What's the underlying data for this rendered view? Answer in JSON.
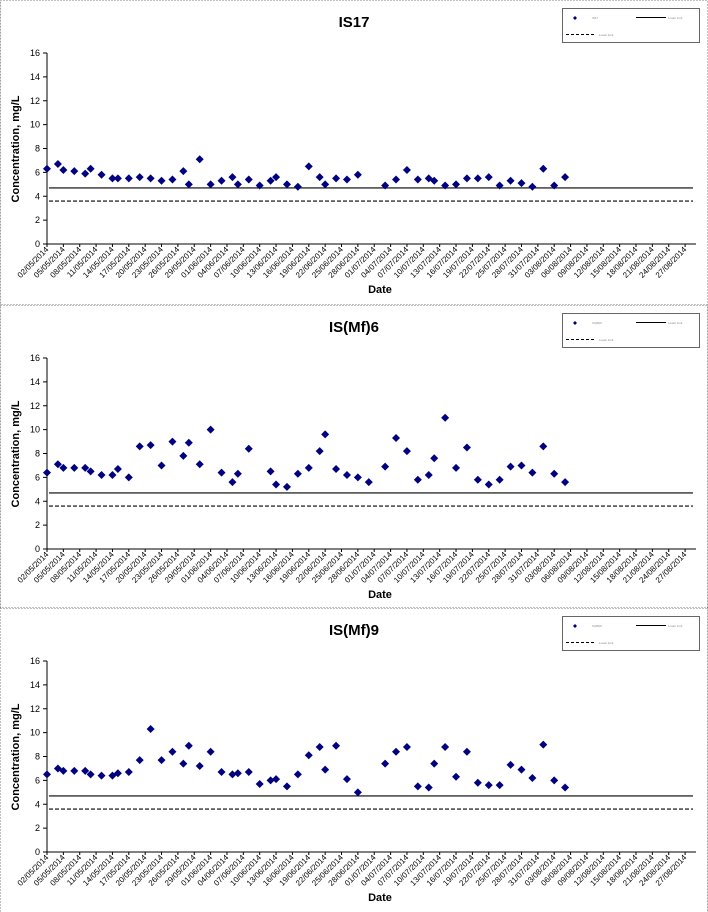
{
  "chart_data": [
    {
      "type": "scatter",
      "title": "IS17",
      "xlabel": "Date",
      "ylabel": "Concentration, mg/L",
      "ylim": [
        0,
        16
      ],
      "yticks": [
        0,
        2,
        4,
        6,
        8,
        10,
        12,
        14,
        16
      ],
      "xlim": [
        "2014-05-02",
        "2014-08-29"
      ],
      "xticks": [
        "02/05/2014",
        "05/05/2014",
        "08/05/2014",
        "11/05/2014",
        "14/05/2014",
        "17/05/2014",
        "20/05/2014",
        "23/05/2014",
        "26/05/2014",
        "29/05/2014",
        "01/06/2014",
        "04/06/2014",
        "07/06/2014",
        "10/06/2014",
        "13/06/2014",
        "16/06/2014",
        "19/06/2014",
        "22/06/2014",
        "25/06/2014",
        "28/06/2014",
        "01/07/2014",
        "04/07/2014",
        "07/07/2014",
        "10/07/2014",
        "13/07/2014",
        "16/07/2014",
        "19/07/2014",
        "22/07/2014",
        "25/07/2014",
        "28/07/2014",
        "31/07/2014",
        "03/08/2014",
        "06/08/2014",
        "09/08/2014",
        "12/08/2014",
        "15/08/2014",
        "18/08/2014",
        "21/08/2014",
        "24/08/2014",
        "27/08/2014"
      ],
      "grid": false,
      "legend": "top-right",
      "legend_items": [
        {
          "kind": "marker",
          "label": "IS17"
        },
        {
          "kind": "solid",
          "label": "Lower limit"
        },
        {
          "kind": "dashed",
          "label": "Lower limit"
        }
      ],
      "reference_lines": [
        {
          "style": "solid",
          "y": 4.7
        },
        {
          "style": "dashed",
          "y": 3.6
        }
      ],
      "series": [
        {
          "points": [
            [
              "2014-05-02",
              6.3
            ],
            [
              "2014-05-04",
              6.7
            ],
            [
              "2014-05-05",
              6.2
            ],
            [
              "2014-05-07",
              6.1
            ],
            [
              "2014-05-09",
              5.9
            ],
            [
              "2014-05-10",
              6.3
            ],
            [
              "2014-05-12",
              5.8
            ],
            [
              "2014-05-14",
              5.5
            ],
            [
              "2014-05-15",
              5.5
            ],
            [
              "2014-05-17",
              5.5
            ],
            [
              "2014-05-19",
              5.6
            ],
            [
              "2014-05-21",
              5.5
            ],
            [
              "2014-05-23",
              5.3
            ],
            [
              "2014-05-25",
              5.4
            ],
            [
              "2014-05-27",
              6.1
            ],
            [
              "2014-05-28",
              5.0
            ],
            [
              "2014-05-30",
              7.1
            ],
            [
              "2014-06-01",
              5.0
            ],
            [
              "2014-06-03",
              5.3
            ],
            [
              "2014-06-05",
              5.6
            ],
            [
              "2014-06-06",
              5.0
            ],
            [
              "2014-06-08",
              5.4
            ],
            [
              "2014-06-10",
              4.9
            ],
            [
              "2014-06-12",
              5.3
            ],
            [
              "2014-06-13",
              5.6
            ],
            [
              "2014-06-15",
              5.0
            ],
            [
              "2014-06-17",
              4.8
            ],
            [
              "2014-06-19",
              6.5
            ],
            [
              "2014-06-21",
              5.6
            ],
            [
              "2014-06-22",
              5.0
            ],
            [
              "2014-06-24",
              5.5
            ],
            [
              "2014-06-26",
              5.4
            ],
            [
              "2014-06-28",
              5.8
            ],
            [
              "2014-07-03",
              4.9
            ],
            [
              "2014-07-05",
              5.4
            ],
            [
              "2014-07-07",
              6.2
            ],
            [
              "2014-07-09",
              5.4
            ],
            [
              "2014-07-11",
              5.5
            ],
            [
              "2014-07-12",
              5.3
            ],
            [
              "2014-07-14",
              4.9
            ],
            [
              "2014-07-16",
              5.0
            ],
            [
              "2014-07-18",
              5.5
            ],
            [
              "2014-07-20",
              5.5
            ],
            [
              "2014-07-22",
              5.6
            ],
            [
              "2014-07-24",
              4.9
            ],
            [
              "2014-07-26",
              5.3
            ],
            [
              "2014-07-28",
              5.1
            ],
            [
              "2014-07-30",
              4.8
            ],
            [
              "2014-08-01",
              6.3
            ],
            [
              "2014-08-03",
              4.9
            ],
            [
              "2014-08-05",
              5.6
            ]
          ]
        }
      ]
    },
    {
      "type": "scatter",
      "title": "IS(Mf)6",
      "xlabel": "Date",
      "ylabel": "Concentration, mg/L",
      "ylim": [
        0,
        16
      ],
      "yticks": [
        0,
        2,
        4,
        6,
        8,
        10,
        12,
        14,
        16
      ],
      "xlim": [
        "2014-05-02",
        "2014-08-29"
      ],
      "xticks": [
        "02/05/2014",
        "05/05/2014",
        "08/05/2014",
        "11/05/2014",
        "14/05/2014",
        "17/05/2014",
        "20/05/2014",
        "23/05/2014",
        "26/05/2014",
        "29/05/2014",
        "01/06/2014",
        "04/06/2014",
        "07/06/2014",
        "10/06/2014",
        "13/06/2014",
        "16/06/2014",
        "19/06/2014",
        "22/06/2014",
        "25/06/2014",
        "28/06/2014",
        "01/07/2014",
        "04/07/2014",
        "07/07/2014",
        "10/07/2014",
        "13/07/2014",
        "16/07/2014",
        "19/07/2014",
        "22/07/2014",
        "25/07/2014",
        "28/07/2014",
        "31/07/2014",
        "03/08/2014",
        "06/08/2014",
        "09/08/2014",
        "12/08/2014",
        "15/08/2014",
        "18/08/2014",
        "21/08/2014",
        "24/08/2014",
        "27/08/2014"
      ],
      "grid": false,
      "legend": "top-right",
      "legend_items": [
        {
          "kind": "marker",
          "label": "IS(Mf)6"
        },
        {
          "kind": "solid",
          "label": "Lower limit"
        },
        {
          "kind": "dashed",
          "label": "Lower limit"
        }
      ],
      "reference_lines": [
        {
          "style": "solid",
          "y": 4.7
        },
        {
          "style": "dashed",
          "y": 3.6
        }
      ],
      "series": [
        {
          "points": [
            [
              "2014-05-02",
              6.4
            ],
            [
              "2014-05-04",
              7.1
            ],
            [
              "2014-05-05",
              6.8
            ],
            [
              "2014-05-07",
              6.8
            ],
            [
              "2014-05-09",
              6.8
            ],
            [
              "2014-05-10",
              6.5
            ],
            [
              "2014-05-12",
              6.2
            ],
            [
              "2014-05-14",
              6.2
            ],
            [
              "2014-05-15",
              6.7
            ],
            [
              "2014-05-17",
              6.0
            ],
            [
              "2014-05-19",
              8.6
            ],
            [
              "2014-05-21",
              8.7
            ],
            [
              "2014-05-23",
              7.0
            ],
            [
              "2014-05-25",
              9.0
            ],
            [
              "2014-05-27",
              7.8
            ],
            [
              "2014-05-28",
              8.9
            ],
            [
              "2014-05-30",
              7.1
            ],
            [
              "2014-06-01",
              10.0
            ],
            [
              "2014-06-03",
              6.4
            ],
            [
              "2014-06-05",
              5.6
            ],
            [
              "2014-06-06",
              6.3
            ],
            [
              "2014-06-08",
              8.4
            ],
            [
              "2014-06-12",
              6.5
            ],
            [
              "2014-06-13",
              5.4
            ],
            [
              "2014-06-15",
              5.2
            ],
            [
              "2014-06-17",
              6.3
            ],
            [
              "2014-06-19",
              6.8
            ],
            [
              "2014-06-21",
              8.2
            ],
            [
              "2014-06-22",
              9.6
            ],
            [
              "2014-06-24",
              6.7
            ],
            [
              "2014-06-26",
              6.2
            ],
            [
              "2014-06-28",
              6.0
            ],
            [
              "2014-06-30",
              5.6
            ],
            [
              "2014-07-03",
              6.9
            ],
            [
              "2014-07-05",
              9.3
            ],
            [
              "2014-07-07",
              8.2
            ],
            [
              "2014-07-09",
              5.8
            ],
            [
              "2014-07-11",
              6.2
            ],
            [
              "2014-07-12",
              7.6
            ],
            [
              "2014-07-14",
              11.0
            ],
            [
              "2014-07-16",
              6.8
            ],
            [
              "2014-07-18",
              8.5
            ],
            [
              "2014-07-20",
              5.8
            ],
            [
              "2014-07-22",
              5.4
            ],
            [
              "2014-07-24",
              5.8
            ],
            [
              "2014-07-26",
              6.9
            ],
            [
              "2014-07-28",
              7.0
            ],
            [
              "2014-07-30",
              6.4
            ],
            [
              "2014-08-01",
              8.6
            ],
            [
              "2014-08-03",
              6.3
            ],
            [
              "2014-08-05",
              5.6
            ]
          ]
        }
      ]
    },
    {
      "type": "scatter",
      "title": "IS(Mf)9",
      "xlabel": "Date",
      "ylabel": "Concentration, mg/L",
      "ylim": [
        0,
        16
      ],
      "yticks": [
        0,
        2,
        4,
        6,
        8,
        10,
        12,
        14,
        16
      ],
      "xlim": [
        "2014-05-02",
        "2014-08-29"
      ],
      "xticks": [
        "02/05/2014",
        "05/05/2014",
        "08/05/2014",
        "11/05/2014",
        "14/05/2014",
        "17/05/2014",
        "20/05/2014",
        "23/05/2014",
        "26/05/2014",
        "29/05/2014",
        "01/06/2014",
        "04/06/2014",
        "07/06/2014",
        "10/06/2014",
        "13/06/2014",
        "16/06/2014",
        "19/06/2014",
        "22/06/2014",
        "25/06/2014",
        "28/06/2014",
        "01/07/2014",
        "04/07/2014",
        "07/07/2014",
        "10/07/2014",
        "13/07/2014",
        "16/07/2014",
        "19/07/2014",
        "22/07/2014",
        "25/07/2014",
        "28/07/2014",
        "31/07/2014",
        "03/08/2014",
        "06/08/2014",
        "09/08/2014",
        "12/08/2014",
        "15/08/2014",
        "18/08/2014",
        "21/08/2014",
        "24/08/2014",
        "27/08/2014"
      ],
      "grid": false,
      "legend": "top-right",
      "legend_items": [
        {
          "kind": "marker",
          "label": "IS(Mf)9"
        },
        {
          "kind": "solid",
          "label": "Lower limit"
        },
        {
          "kind": "dashed",
          "label": "Lower limit"
        }
      ],
      "reference_lines": [
        {
          "style": "solid",
          "y": 4.7
        },
        {
          "style": "dashed",
          "y": 3.6
        }
      ],
      "series": [
        {
          "points": [
            [
              "2014-05-02",
              6.5
            ],
            [
              "2014-05-04",
              7.0
            ],
            [
              "2014-05-05",
              6.8
            ],
            [
              "2014-05-07",
              6.8
            ],
            [
              "2014-05-09",
              6.8
            ],
            [
              "2014-05-10",
              6.5
            ],
            [
              "2014-05-12",
              6.4
            ],
            [
              "2014-05-14",
              6.4
            ],
            [
              "2014-05-15",
              6.6
            ],
            [
              "2014-05-17",
              6.7
            ],
            [
              "2014-05-19",
              7.7
            ],
            [
              "2014-05-21",
              10.3
            ],
            [
              "2014-05-23",
              7.7
            ],
            [
              "2014-05-25",
              8.4
            ],
            [
              "2014-05-27",
              7.4
            ],
            [
              "2014-05-28",
              8.9
            ],
            [
              "2014-05-30",
              7.2
            ],
            [
              "2014-06-01",
              8.4
            ],
            [
              "2014-06-03",
              6.7
            ],
            [
              "2014-06-05",
              6.5
            ],
            [
              "2014-06-06",
              6.6
            ],
            [
              "2014-06-08",
              6.7
            ],
            [
              "2014-06-10",
              5.7
            ],
            [
              "2014-06-12",
              6.0
            ],
            [
              "2014-06-13",
              6.1
            ],
            [
              "2014-06-15",
              5.5
            ],
            [
              "2014-06-17",
              6.5
            ],
            [
              "2014-06-19",
              8.1
            ],
            [
              "2014-06-21",
              8.8
            ],
            [
              "2014-06-22",
              6.9
            ],
            [
              "2014-06-24",
              8.9
            ],
            [
              "2014-06-26",
              6.1
            ],
            [
              "2014-06-28",
              5.0
            ],
            [
              "2014-07-03",
              7.4
            ],
            [
              "2014-07-05",
              8.4
            ],
            [
              "2014-07-07",
              8.8
            ],
            [
              "2014-07-09",
              5.5
            ],
            [
              "2014-07-11",
              5.4
            ],
            [
              "2014-07-12",
              7.4
            ],
            [
              "2014-07-14",
              8.8
            ],
            [
              "2014-07-16",
              6.3
            ],
            [
              "2014-07-18",
              8.4
            ],
            [
              "2014-07-20",
              5.8
            ],
            [
              "2014-07-22",
              5.6
            ],
            [
              "2014-07-24",
              5.6
            ],
            [
              "2014-07-26",
              7.3
            ],
            [
              "2014-07-28",
              6.9
            ],
            [
              "2014-07-30",
              6.2
            ],
            [
              "2014-08-01",
              9.0
            ],
            [
              "2014-08-03",
              6.0
            ],
            [
              "2014-08-05",
              5.4
            ]
          ]
        }
      ]
    }
  ],
  "colors": {
    "marker": "#000080",
    "line": "#000000",
    "frame": "#808080"
  }
}
